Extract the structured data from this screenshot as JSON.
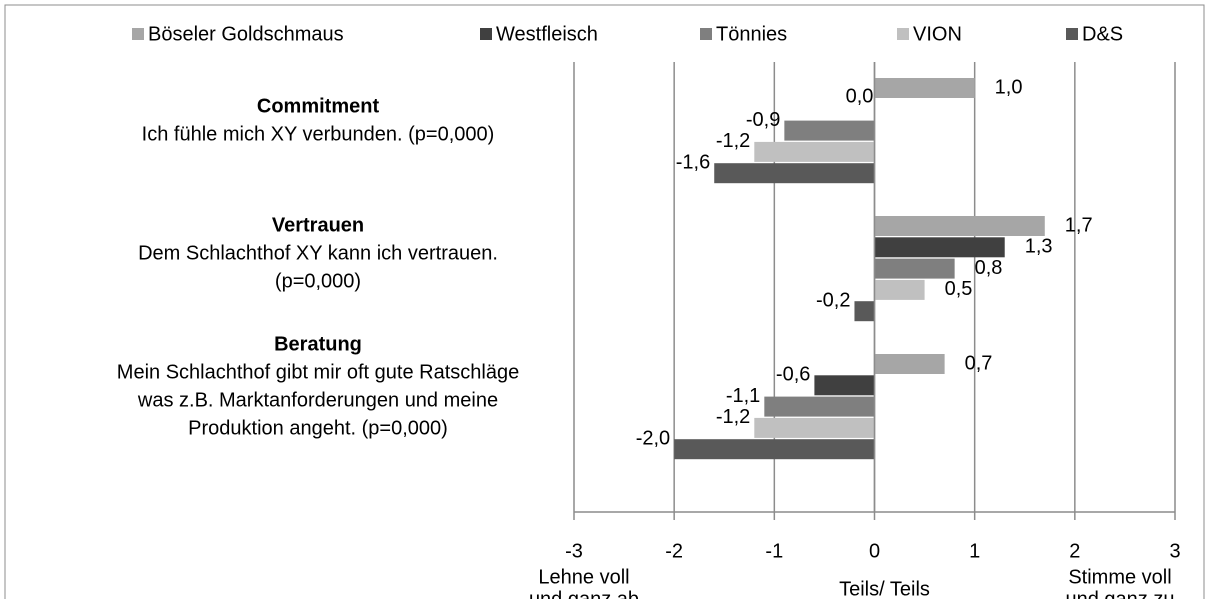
{
  "chart_data": {
    "type": "hbar",
    "categories": [
      "Commitment",
      "Vertrauen",
      "Beratung"
    ],
    "category_descriptions": [
      [
        "Ich fühle mich XY verbunden. (p=0,000)"
      ],
      [
        "Dem Schlachthof XY kann ich vertrauen.",
        "(p=0,000)"
      ],
      [
        "Mein Schlachthof gibt mir oft gute Ratschläge",
        "was z.B. Marktanforderungen und meine",
        "Produktion angeht. (p=0,000)"
      ]
    ],
    "series": [
      {
        "name": "Böseler Goldschmaus",
        "color": "#a6a6a6",
        "values": [
          1.0,
          1.7,
          0.7
        ],
        "value_labels": [
          "1,0",
          "1,7",
          "0,7"
        ]
      },
      {
        "name": "Westfleisch",
        "color": "#404040",
        "values": [
          0.0,
          1.3,
          -0.6
        ],
        "value_labels": [
          "0,0",
          "1,3",
          "-0,6"
        ]
      },
      {
        "name": "Tönnies",
        "color": "#7f7f7f",
        "values": [
          -0.9,
          0.8,
          -1.1
        ],
        "value_labels": [
          "-0,9",
          "0,8",
          "-1,1"
        ]
      },
      {
        "name": "VION",
        "color": "#c0c0c0",
        "values": [
          -1.2,
          0.5,
          -1.2
        ],
        "value_labels": [
          "-1,2",
          "0,5",
          "-1,2"
        ]
      },
      {
        "name": "D&S",
        "color": "#595959",
        "values": [
          -1.6,
          -0.2,
          -2.0
        ],
        "value_labels": [
          "-1,6",
          "-0,2",
          "-2,0"
        ]
      }
    ],
    "xlim": [
      -3,
      3
    ],
    "xticks": [
      -3,
      -2,
      -1,
      0,
      1,
      2,
      3
    ],
    "grid": true,
    "legend": "top",
    "x_annotations": [
      [
        "Lehne voll",
        "und ganz ab"
      ],
      [
        "Teils/ Teils"
      ],
      [
        "Stimme voll",
        "und ganz zu"
      ]
    ]
  }
}
